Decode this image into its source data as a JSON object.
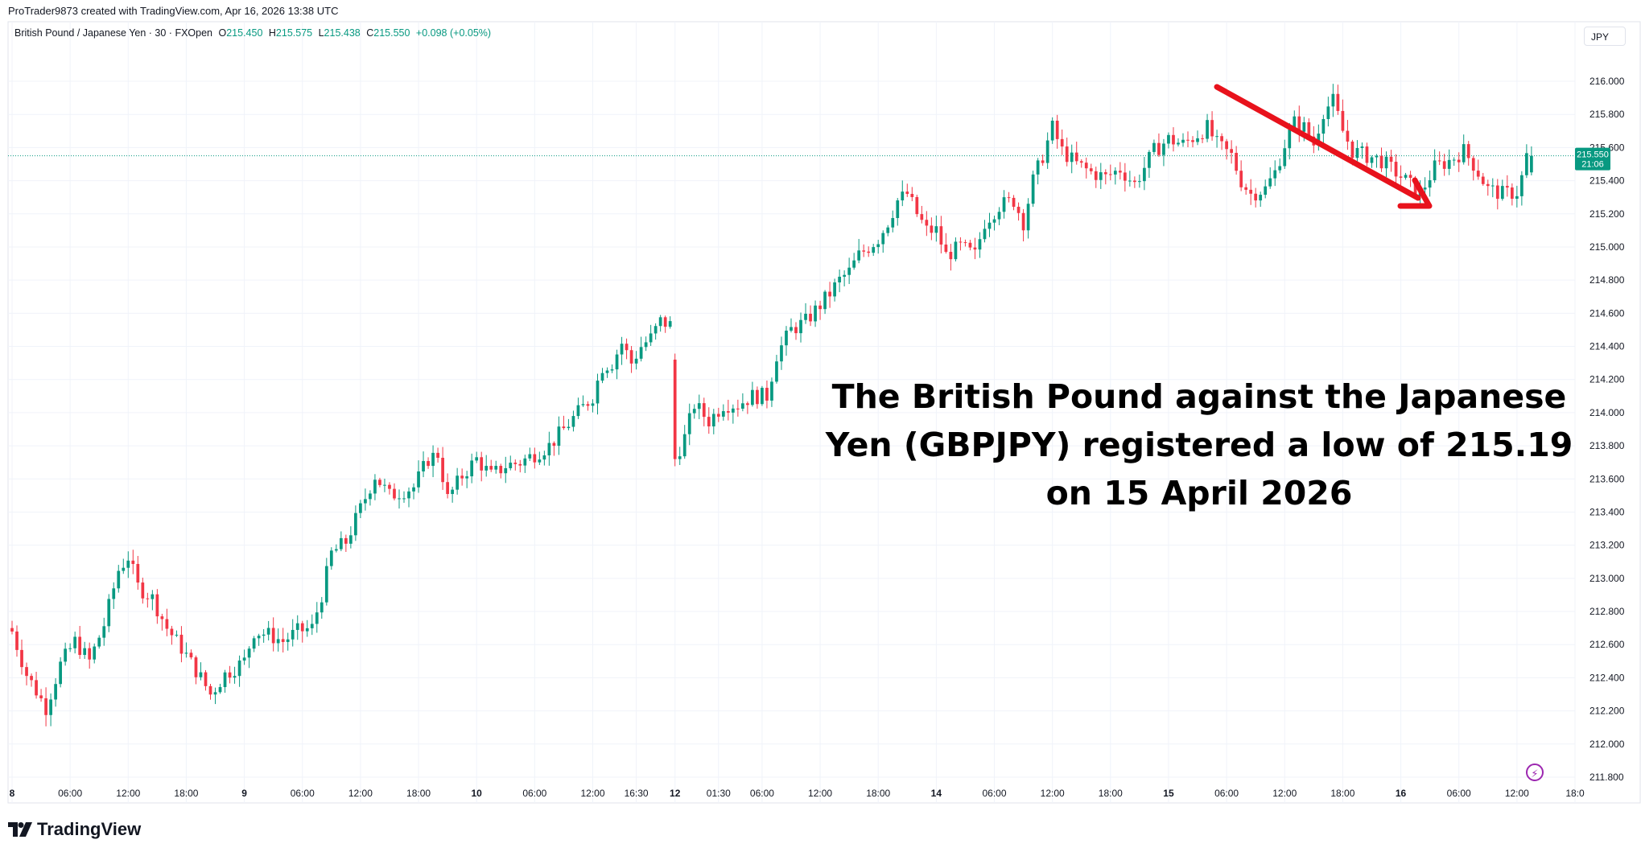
{
  "credit": "ProTrader9873 created with TradingView.com, Apr 16, 2026 13:38 UTC",
  "legend": {
    "symbol": "British Pound / Japanese Yen · 30 · FXOpen",
    "open_label": "O",
    "open": "215.450",
    "high_label": "H",
    "high": "215.575",
    "low_label": "L",
    "low": "215.438",
    "close_label": "C",
    "close": "215.550",
    "change": "+0.098 (+0.05%)"
  },
  "currency": "JPY",
  "price_badge": {
    "price": "215.550",
    "countdown": "21:06"
  },
  "annotation": "The British Pound against the Japanese Yen (GBPJPY) registered a low of 215.19 on 15 April 2026",
  "brand": "TradingView",
  "colors": {
    "up": "#089981",
    "down": "#f23645",
    "arrow": "#e8121c",
    "grid": "#f0f3fa",
    "text": "#131722"
  },
  "chart_data": {
    "type": "candlestick",
    "ylim": [
      211.8,
      216.2
    ],
    "y_ticks": [
      "216.000",
      "215.800",
      "215.600",
      "215.400",
      "215.200",
      "215.000",
      "214.800",
      "214.600",
      "214.400",
      "214.200",
      "214.000",
      "213.800",
      "213.600",
      "213.400",
      "213.200",
      "213.000",
      "212.800",
      "212.600",
      "212.400",
      "212.200",
      "212.000",
      "211.800"
    ],
    "x_ticks": [
      {
        "label": "8",
        "bold": true,
        "t": 0
      },
      {
        "label": "06:00",
        "bold": false,
        "t": 12
      },
      {
        "label": "12:00",
        "bold": false,
        "t": 24
      },
      {
        "label": "18:00",
        "bold": false,
        "t": 36
      },
      {
        "label": "9",
        "bold": true,
        "t": 48
      },
      {
        "label": "06:00",
        "bold": false,
        "t": 60
      },
      {
        "label": "12:00",
        "bold": false,
        "t": 72
      },
      {
        "label": "18:00",
        "bold": false,
        "t": 84
      },
      {
        "label": "10",
        "bold": true,
        "t": 96
      },
      {
        "label": "06:00",
        "bold": false,
        "t": 108
      },
      {
        "label": "12:00",
        "bold": false,
        "t": 120
      },
      {
        "label": "16:30",
        "bold": false,
        "t": 129
      },
      {
        "label": "12",
        "bold": true,
        "t": 137
      },
      {
        "label": "01:30",
        "bold": false,
        "t": 146
      },
      {
        "label": "06:00",
        "bold": false,
        "t": 155
      },
      {
        "label": "12:00",
        "bold": false,
        "t": 167
      },
      {
        "label": "18:00",
        "bold": false,
        "t": 179
      },
      {
        "label": "14",
        "bold": true,
        "t": 191
      },
      {
        "label": "06:00",
        "bold": false,
        "t": 203
      },
      {
        "label": "12:00",
        "bold": false,
        "t": 215
      },
      {
        "label": "18:00",
        "bold": false,
        "t": 227
      },
      {
        "label": "15",
        "bold": true,
        "t": 239
      },
      {
        "label": "06:00",
        "bold": false,
        "t": 251
      },
      {
        "label": "12:00",
        "bold": false,
        "t": 263
      },
      {
        "label": "18:00",
        "bold": false,
        "t": 275
      },
      {
        "label": "16",
        "bold": true,
        "t": 287
      },
      {
        "label": "06:00",
        "bold": false,
        "t": 299
      },
      {
        "label": "12:00",
        "bold": false,
        "t": 311
      },
      {
        "label": "18:0",
        "bold": false,
        "t": 323
      }
    ],
    "last_price": 215.55,
    "gap_after_index": 136,
    "close_path": [
      [
        0,
        212.68
      ],
      [
        3,
        212.42
      ],
      [
        7,
        212.22
      ],
      [
        10,
        212.48
      ],
      [
        13,
        212.62
      ],
      [
        16,
        212.5
      ],
      [
        19,
        212.72
      ],
      [
        22,
        213.05
      ],
      [
        24,
        213.13
      ],
      [
        26,
        212.95
      ],
      [
        29,
        212.88
      ],
      [
        32,
        212.7
      ],
      [
        35,
        212.58
      ],
      [
        39,
        212.4
      ],
      [
        41,
        212.3
      ],
      [
        44,
        212.42
      ],
      [
        48,
        212.5
      ],
      [
        50,
        212.68
      ],
      [
        53,
        212.66
      ],
      [
        56,
        212.62
      ],
      [
        59,
        212.68
      ],
      [
        62,
        212.7
      ],
      [
        64,
        212.9
      ],
      [
        66,
        213.15
      ],
      [
        69,
        213.22
      ],
      [
        72,
        213.42
      ],
      [
        75,
        213.62
      ],
      [
        78,
        213.5
      ],
      [
        80,
        213.52
      ],
      [
        83,
        213.55
      ],
      [
        86,
        213.72
      ],
      [
        88,
        213.75
      ],
      [
        90,
        213.48
      ],
      [
        93,
        213.62
      ],
      [
        96,
        213.72
      ],
      [
        99,
        213.62
      ],
      [
        102,
        213.68
      ],
      [
        105,
        213.7
      ],
      [
        108,
        213.75
      ],
      [
        111,
        213.8
      ],
      [
        114,
        213.9
      ],
      [
        117,
        214.0
      ],
      [
        120,
        214.1
      ],
      [
        122,
        214.28
      ],
      [
        124,
        214.3
      ],
      [
        126,
        214.42
      ],
      [
        128,
        214.3
      ],
      [
        130,
        214.4
      ],
      [
        132,
        214.45
      ],
      [
        134,
        214.55
      ],
      [
        136,
        214.53
      ],
      [
        137,
        213.72
      ],
      [
        139,
        213.85
      ],
      [
        141,
        214.05
      ],
      [
        144,
        213.95
      ],
      [
        147,
        214.05
      ],
      [
        150,
        214.05
      ],
      [
        153,
        214.1
      ],
      [
        156,
        214.1
      ],
      [
        158,
        214.35
      ],
      [
        161,
        214.5
      ],
      [
        164,
        214.55
      ],
      [
        167,
        214.65
      ],
      [
        169,
        214.72
      ],
      [
        171,
        214.8
      ],
      [
        173,
        214.85
      ],
      [
        175,
        214.95
      ],
      [
        177,
        215.0
      ],
      [
        179,
        215.05
      ],
      [
        181,
        215.15
      ],
      [
        183,
        215.28
      ],
      [
        185,
        215.32
      ],
      [
        187,
        215.2
      ],
      [
        189,
        215.1
      ],
      [
        191,
        215.1
      ],
      [
        193,
        214.95
      ],
      [
        196,
        215.0
      ],
      [
        199,
        214.95
      ],
      [
        201,
        215.15
      ],
      [
        204,
        215.25
      ],
      [
        207,
        215.28
      ],
      [
        209,
        215.15
      ],
      [
        211,
        215.4
      ],
      [
        213,
        215.55
      ],
      [
        215,
        215.72
      ],
      [
        217,
        215.58
      ],
      [
        220,
        215.5
      ],
      [
        223,
        215.45
      ],
      [
        226,
        215.42
      ],
      [
        229,
        215.47
      ],
      [
        232,
        215.38
      ],
      [
        234,
        215.48
      ],
      [
        236,
        215.58
      ],
      [
        239,
        215.65
      ],
      [
        242,
        215.62
      ],
      [
        245,
        215.68
      ],
      [
        247,
        215.72
      ],
      [
        249,
        215.62
      ],
      [
        252,
        215.55
      ],
      [
        254,
        215.4
      ],
      [
        256,
        215.32
      ],
      [
        259,
        215.35
      ],
      [
        261,
        215.45
      ],
      [
        263,
        215.62
      ],
      [
        265,
        215.75
      ],
      [
        267,
        215.72
      ],
      [
        269,
        215.62
      ],
      [
        271,
        215.82
      ],
      [
        273,
        215.88
      ],
      [
        275,
        215.7
      ],
      [
        277,
        215.58
      ],
      [
        280,
        215.55
      ],
      [
        283,
        215.52
      ],
      [
        286,
        215.45
      ],
      [
        288,
        215.4
      ],
      [
        291,
        215.32
      ],
      [
        294,
        215.48
      ],
      [
        297,
        215.52
      ],
      [
        300,
        215.58
      ],
      [
        302,
        215.5
      ],
      [
        305,
        215.35
      ],
      [
        308,
        215.32
      ],
      [
        311,
        215.33
      ],
      [
        312,
        215.42
      ],
      [
        314,
        215.55
      ]
    ]
  }
}
